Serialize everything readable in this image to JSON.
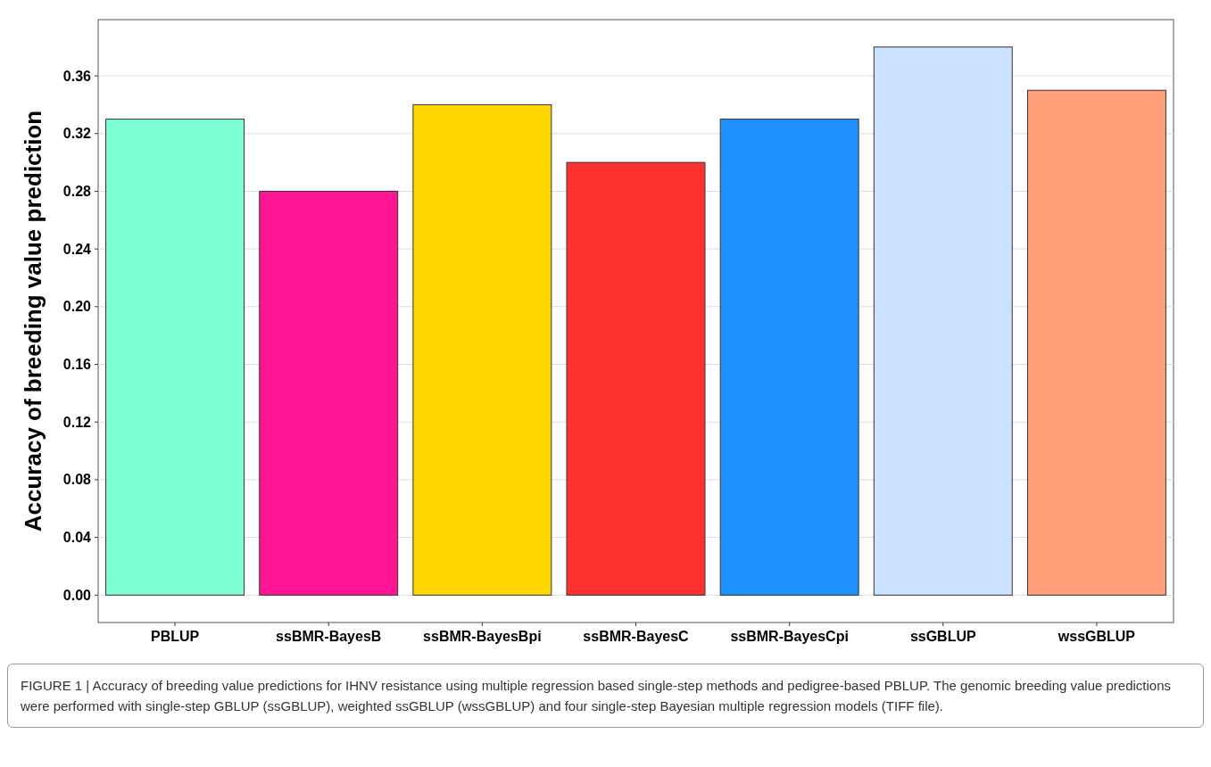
{
  "chart_data": {
    "type": "bar",
    "ylabel": "Accuracy of breeding value prediction",
    "categories": [
      "PBLUP",
      "ssBMR-BayesB",
      "ssBMR-BayesBpi",
      "ssBMR-BayesC",
      "ssBMR-BayesCpi",
      "ssGBLUP",
      "wssGBLUP"
    ],
    "values": [
      0.33,
      0.28,
      0.34,
      0.3,
      0.33,
      0.38,
      0.35
    ],
    "colors": [
      "#7fffd4",
      "#ff1493",
      "#ffd700",
      "#ff3030",
      "#1e90ff",
      "#cae1ff",
      "#ffa07a"
    ],
    "ylim": [
      -0.019,
      0.399
    ],
    "yticks": [
      {
        "value": 0,
        "label": "0.00"
      },
      {
        "value": 0.04,
        "label": "0.04"
      },
      {
        "value": 0.08,
        "label": "0.08"
      },
      {
        "value": 0.12,
        "label": "0.12"
      },
      {
        "value": 0.16,
        "label": "0.16"
      },
      {
        "value": 0.2,
        "label": "0.20"
      },
      {
        "value": 0.24,
        "label": "0.24"
      },
      {
        "value": 0.28,
        "label": "0.28"
      },
      {
        "value": 0.32,
        "label": "0.32"
      },
      {
        "value": 0.36,
        "label": "0.36"
      }
    ],
    "grid": "y",
    "annotations": [
      "FIGURE 1 | Accuracy of breeding value predictions for IHNV resistance using multiple regression based single-step methods and pedigree-based PBLUP. The genomic breeding value predictions were performed with single-step GBLUP (ssGBLUP), weighted ssGBLUP (wssGBLUP) and four single-step Bayesian multiple regression models (TIFF file)."
    ]
  }
}
